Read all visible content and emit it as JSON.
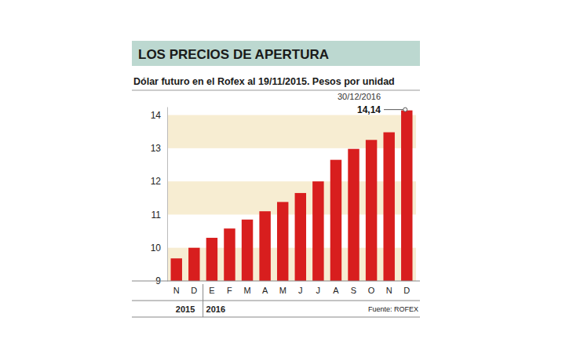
{
  "chart_data": {
    "type": "bar",
    "title": "LOS PRECIOS DE APERTURA",
    "subtitle": "Dólar futuro en el Rofex al 19/11/2015. Pesos por unidad",
    "categories": [
      "N",
      "D",
      "E",
      "F",
      "M",
      "A",
      "M",
      "J",
      "J",
      "A",
      "S",
      "O",
      "N",
      "D"
    ],
    "values": [
      9.68,
      10.0,
      10.3,
      10.58,
      10.85,
      11.1,
      11.38,
      11.65,
      12.0,
      12.65,
      12.98,
      13.25,
      13.48,
      14.14
    ],
    "color": "#d81e1e",
    "ylim": [
      9,
      14.25
    ],
    "yticks": [
      9,
      10,
      11,
      12,
      13,
      14
    ],
    "grid": true,
    "groups": [
      {
        "label": "2015",
        "size": 2
      },
      {
        "label": "2016",
        "size": 12
      }
    ],
    "annotations": [
      "30/12/2016",
      "14,14"
    ],
    "source": "Fuente: ROFEX"
  }
}
